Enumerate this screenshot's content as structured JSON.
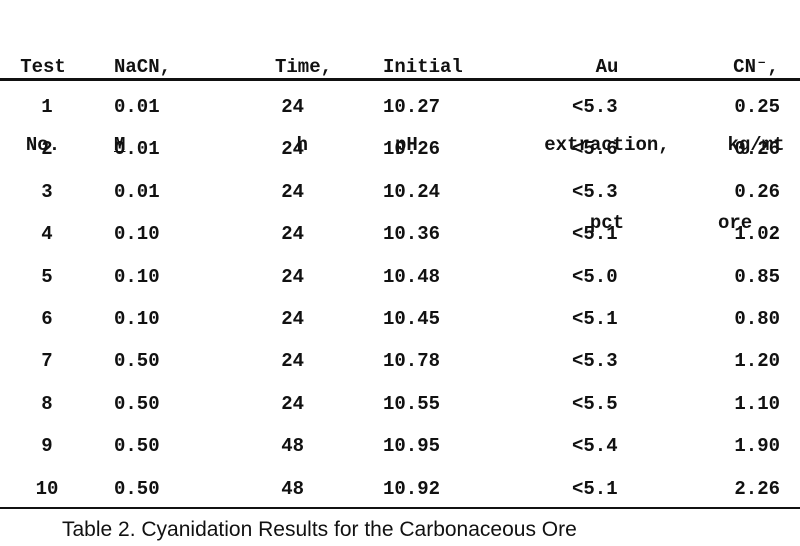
{
  "table": {
    "headers": [
      {
        "lines": [
          "Test",
          "No."
        ]
      },
      {
        "lines": [
          "NaCN,",
          "M"
        ]
      },
      {
        "lines": [
          "Time,",
          "h"
        ]
      },
      {
        "lines": [
          "Initial",
          "pH"
        ]
      },
      {
        "lines": [
          "Au",
          "extraction,",
          "pct"
        ]
      },
      {
        "lines": [
          "CN⁻,",
          "kg/mt",
          "ore"
        ]
      }
    ],
    "rows": [
      [
        "1",
        "0.01",
        "24",
        "10.27",
        "<5.3",
        "0.25"
      ],
      [
        "2",
        "0.01",
        "24",
        "10.26",
        "<5.6",
        "0.26"
      ],
      [
        "3",
        "0.01",
        "24",
        "10.24",
        "<5.3",
        "0.26"
      ],
      [
        "4",
        "0.10",
        "24",
        "10.36",
        "<5.1",
        "1.02"
      ],
      [
        "5",
        "0.10",
        "24",
        "10.48",
        "<5.0",
        "0.85"
      ],
      [
        "6",
        "0.10",
        "24",
        "10.45",
        "<5.1",
        "0.80"
      ],
      [
        "7",
        "0.50",
        "24",
        "10.78",
        "<5.3",
        "1.20"
      ],
      [
        "8",
        "0.50",
        "24",
        "10.55",
        "<5.5",
        "1.10"
      ],
      [
        "9",
        "0.50",
        "48",
        "10.95",
        "<5.4",
        "1.90"
      ],
      [
        "10",
        "0.50",
        "48",
        "10.92",
        "<5.1",
        "2.26"
      ]
    ]
  },
  "caption": "Table 2. Cyanidation Results for the Carbonaceous Ore"
}
